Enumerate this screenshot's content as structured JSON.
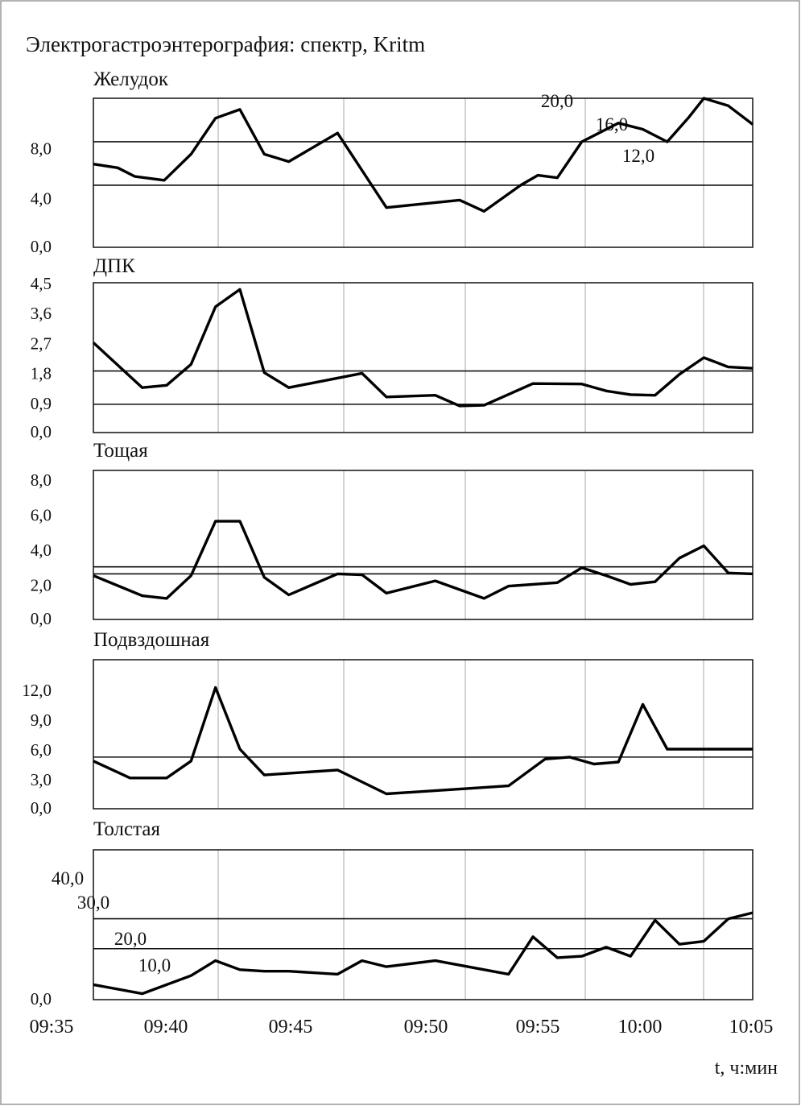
{
  "chart_data": {
    "title": "Электрогастроэнтерография: спектр, Kritm",
    "type": "line",
    "xlabel": "t, ч:мин",
    "x_ticks": [
      "09:35",
      "09:40",
      "09:45",
      "09:50",
      "09:55",
      "10:00",
      "10:05"
    ],
    "x_tick_minutes": [
      0,
      5,
      10,
      15,
      20,
      25,
      30
    ],
    "panels": [
      {
        "name": "Желудок",
        "ylim": [
          0,
          12
        ],
        "y_ticks": [
          "0,0",
          "4,0",
          "8,0"
        ],
        "y_tick_values": [
          0,
          4,
          8
        ],
        "extra_labels": [
          "20,0",
          "16,0",
          "12,0"
        ],
        "reference_lines": [
          8.5,
          5.0
        ],
        "x": [
          0,
          1,
          1.7,
          2.9,
          4.0,
          5.0,
          6.0,
          7.0,
          8.0,
          10.0,
          12.0,
          15.0,
          16.0,
          17.5,
          18.2,
          19.0,
          20.0,
          21.5,
          22.5,
          23.5,
          24.4,
          25.0,
          26.0,
          27.0
        ],
        "values": [
          6.7,
          6.4,
          5.7,
          5.4,
          7.5,
          10.4,
          11.1,
          7.5,
          6.9,
          9.2,
          3.2,
          3.8,
          2.9,
          5.0,
          5.8,
          5.6,
          8.5,
          10.0,
          9.5,
          8.5,
          10.5,
          12.0,
          11.4,
          9.9
        ]
      },
      {
        "name": "ДПК",
        "ylim": [
          0,
          4.5
        ],
        "y_ticks": [
          "0,0",
          "0,9",
          "1,8",
          "2,7",
          "3,6",
          "4,5"
        ],
        "y_tick_values": [
          0,
          0.9,
          1.8,
          2.7,
          3.6,
          4.5
        ],
        "reference_lines": [
          1.85,
          0.85
        ],
        "x": [
          0,
          2.0,
          3.0,
          4.0,
          5.0,
          6.0,
          7.0,
          8.0,
          11.0,
          12.0,
          14.0,
          15.0,
          16.0,
          18.0,
          20.0,
          21.0,
          22.0,
          23.0,
          24.0,
          25.0,
          26.0,
          27.0
        ],
        "values": [
          2.7,
          1.35,
          1.42,
          2.05,
          3.78,
          4.3,
          1.8,
          1.35,
          1.78,
          1.07,
          1.12,
          0.8,
          0.82,
          1.47,
          1.46,
          1.25,
          1.14,
          1.12,
          1.75,
          2.25,
          1.97,
          1.93
        ]
      },
      {
        "name": "Тощая",
        "ylim": [
          0,
          8.5
        ],
        "y_ticks": [
          "0,0",
          "2,0",
          "4,0",
          "6,0",
          "8,0"
        ],
        "y_tick_values": [
          0,
          2,
          4,
          6,
          8
        ],
        "reference_lines": [
          3.0,
          2.6
        ],
        "x": [
          0,
          2.0,
          3.0,
          4.0,
          5.0,
          6.0,
          7.0,
          8.0,
          10.0,
          11.0,
          12.0,
          14.0,
          16.0,
          17.0,
          19.0,
          20.0,
          21.0,
          22.0,
          23.0,
          24.0,
          25.0,
          26.0,
          27.0
        ],
        "values": [
          2.5,
          1.35,
          1.2,
          2.5,
          5.6,
          5.6,
          2.4,
          1.4,
          2.6,
          2.55,
          1.5,
          2.2,
          1.2,
          1.9,
          2.1,
          2.95,
          2.5,
          2.0,
          2.15,
          3.5,
          4.2,
          2.65,
          2.6
        ]
      },
      {
        "name": "Подвздошная",
        "ylim": [
          0,
          15
        ],
        "y_ticks": [
          "0,0",
          "3,0",
          "6,0",
          "9,0",
          "12,0"
        ],
        "y_tick_values": [
          0,
          3,
          6,
          9,
          12
        ],
        "reference_lines": [
          5.2
        ],
        "x": [
          0,
          1.5,
          3.0,
          4.0,
          5.0,
          6.0,
          7.0,
          10.0,
          12.0,
          17.0,
          18.5,
          19.5,
          20.5,
          21.5,
          22.5,
          23.5,
          24.5,
          25.5,
          26.5,
          27.0
        ],
        "values": [
          4.8,
          3.1,
          3.1,
          4.8,
          12.2,
          6.0,
          3.4,
          3.9,
          1.5,
          2.3,
          5.0,
          5.2,
          4.5,
          4.7,
          10.5,
          6.0,
          6.0,
          6.0,
          6.0,
          6.0
        ]
      },
      {
        "name": "Толстая",
        "ylim": [
          0,
          50
        ],
        "y_ticks": [
          "0,0",
          "10,0",
          "20,0",
          "30,0",
          "40,0"
        ],
        "y_tick_values": [
          0,
          10,
          20,
          30,
          40
        ],
        "reference_lines": [
          27,
          17
        ],
        "x": [
          0,
          2.0,
          4.0,
          5.0,
          6.0,
          7.0,
          8.0,
          10.0,
          11.0,
          12.0,
          14.0,
          17.0,
          18.0,
          19.0,
          20.0,
          21.0,
          22.0,
          23.0,
          24.0,
          25.0,
          26.0,
          27.0
        ],
        "values": [
          5,
          2,
          8,
          13,
          10,
          9.5,
          9.5,
          8.5,
          13,
          11,
          13,
          8.5,
          21,
          14,
          14.5,
          17.5,
          14.5,
          26.5,
          18.5,
          19.5,
          27,
          29
        ]
      }
    ]
  }
}
